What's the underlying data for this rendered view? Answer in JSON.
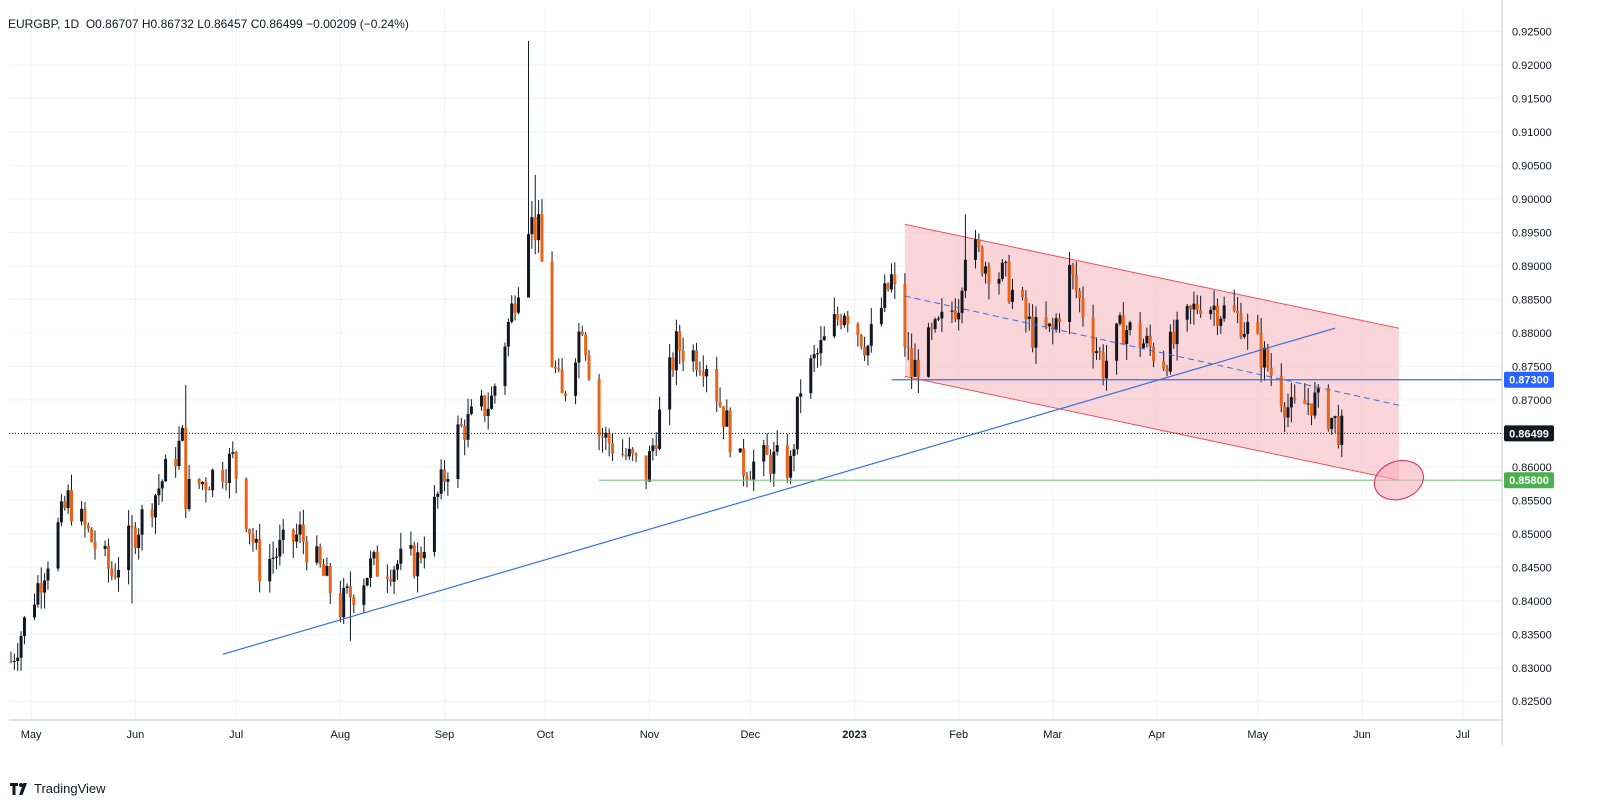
{
  "header": {
    "symbol": "EURGBP",
    "interval": "1D",
    "open": "O0.86707",
    "high": "H0.86732",
    "low": "L0.86457",
    "close": "C0.86499",
    "change": "−0.00209 (−0.24%)"
  },
  "footer": {
    "brand": "TradingView",
    "logo_icon": "tradingview-logo-icon"
  },
  "colors": {
    "up": "#131722",
    "down": "#e8641b",
    "trend_blue": "#3a6fe0",
    "channel_fill": "#f8c8cf",
    "channel_line": "#f04e5e",
    "support_green": "#7cc47f",
    "price_box": "#131722",
    "level_box": "#2962ff",
    "support_box": "#4caf50"
  },
  "chart_data": {
    "type": "candlestick",
    "symbol": "EURGBP",
    "interval": "1D",
    "x_labels": [
      "May",
      "Jun",
      "Jul",
      "Aug",
      "Sep",
      "Oct",
      "Nov",
      "Dec",
      "2023",
      "Feb",
      "Mar",
      "Apr",
      "May",
      "Jun",
      "Jul"
    ],
    "y_ticks": [
      "0.92500",
      "0.92000",
      "0.91500",
      "0.91000",
      "0.90500",
      "0.90000",
      "0.89500",
      "0.89000",
      "0.88500",
      "0.88000",
      "0.87500",
      "0.87000",
      "0.86500",
      "0.86000",
      "0.85500",
      "0.85000",
      "0.84500",
      "0.84000",
      "0.83500",
      "0.83000",
      "0.82500"
    ],
    "ylim": [
      0.8222,
      0.9285
    ],
    "last_price": "0.86499",
    "levels": [
      {
        "label": "0.87300",
        "value": 0.873,
        "kind": "resistance"
      },
      {
        "label": "0.85800",
        "value": 0.858,
        "kind": "support"
      }
    ],
    "anchors": [
      {
        "date": "2022-04-25",
        "close": 0.831
      },
      {
        "date": "2022-05-12",
        "close": 0.855
      },
      {
        "date": "2022-05-25",
        "close": 0.844
      },
      {
        "date": "2022-06-08",
        "close": 0.857
      },
      {
        "date": "2022-06-15",
        "close": 0.864
      },
      {
        "date": "2022-06-16",
        "close": 0.856
      },
      {
        "date": "2022-06-30",
        "close": 0.861
      },
      {
        "date": "2022-07-08",
        "close": 0.845
      },
      {
        "date": "2022-07-20",
        "close": 0.85
      },
      {
        "date": "2022-08-01",
        "close": 0.839
      },
      {
        "date": "2022-08-10",
        "close": 0.845
      },
      {
        "date": "2022-08-24",
        "close": 0.846
      },
      {
        "date": "2022-09-05",
        "close": 0.865
      },
      {
        "date": "2022-09-15",
        "close": 0.87
      },
      {
        "date": "2022-09-23",
        "close": 0.888
      },
      {
        "date": "2022-09-26",
        "close": 0.897
      },
      {
        "date": "2022-09-29",
        "close": 0.895
      },
      {
        "date": "2022-10-03",
        "close": 0.876
      },
      {
        "date": "2022-10-06",
        "close": 0.87
      },
      {
        "date": "2022-10-12",
        "close": 0.882
      },
      {
        "date": "2022-10-17",
        "close": 0.865
      },
      {
        "date": "2022-10-31",
        "close": 0.859
      },
      {
        "date": "2022-11-09",
        "close": 0.878
      },
      {
        "date": "2022-11-18",
        "close": 0.876
      },
      {
        "date": "2022-11-28",
        "close": 0.86
      },
      {
        "date": "2022-12-07",
        "close": 0.861
      },
      {
        "date": "2022-12-13",
        "close": 0.86
      },
      {
        "date": "2022-12-16",
        "close": 0.872
      },
      {
        "date": "2022-12-29",
        "close": 0.884
      },
      {
        "date": "2023-01-05",
        "close": 0.878
      },
      {
        "date": "2023-01-12",
        "close": 0.888
      },
      {
        "date": "2023-01-18",
        "close": 0.874
      },
      {
        "date": "2023-01-24",
        "close": 0.879
      },
      {
        "date": "2023-02-01",
        "close": 0.885
      },
      {
        "date": "2023-02-03",
        "close": 0.893
      },
      {
        "date": "2023-02-15",
        "close": 0.888
      },
      {
        "date": "2023-02-23",
        "close": 0.88
      },
      {
        "date": "2023-03-01",
        "close": 0.88
      },
      {
        "date": "2023-03-06",
        "close": 0.889
      },
      {
        "date": "2023-03-16",
        "close": 0.875
      },
      {
        "date": "2023-03-22",
        "close": 0.881
      },
      {
        "date": "2023-04-03",
        "close": 0.876
      },
      {
        "date": "2023-04-14",
        "close": 0.885
      },
      {
        "date": "2023-04-26",
        "close": 0.882
      },
      {
        "date": "2023-05-02",
        "close": 0.877
      },
      {
        "date": "2023-05-05",
        "close": 0.874
      },
      {
        "date": "2023-05-11",
        "close": 0.868
      },
      {
        "date": "2023-05-17",
        "close": 0.87
      },
      {
        "date": "2023-05-22",
        "close": 0.868
      },
      {
        "date": "2023-05-26",
        "close": 0.865
      }
    ],
    "drawings": [
      {
        "kind": "trendline",
        "name": "ascending-trendline",
        "from": [
          "2022-06-27",
          0.832
        ],
        "to": [
          "2023-05-24",
          0.8807
        ]
      },
      {
        "kind": "hline",
        "name": "resistance-line-0.873",
        "from": [
          "2023-01-12",
          0.873
        ],
        "to_edge": true
      },
      {
        "kind": "hline",
        "name": "support-line-0.858",
        "from": [
          "2022-10-17",
          0.858
        ],
        "to_edge": true
      },
      {
        "kind": "channel",
        "name": "descending-channel",
        "upper": [
          [
            "2023-01-16",
            0.8962
          ],
          [
            "2023-06-12",
            0.8807
          ]
        ],
        "lower": [
          [
            "2023-01-16",
            0.8735
          ],
          [
            "2023-06-12",
            0.858
          ]
        ]
      },
      {
        "kind": "dashed-midline",
        "name": "channel-midline",
        "from": [
          "2023-01-16",
          0.8855
        ],
        "to": [
          "2023-06-12",
          0.8692
        ]
      },
      {
        "kind": "ellipse",
        "name": "target-ellipse",
        "center": [
          "2023-06-12",
          0.858
        ]
      }
    ]
  }
}
